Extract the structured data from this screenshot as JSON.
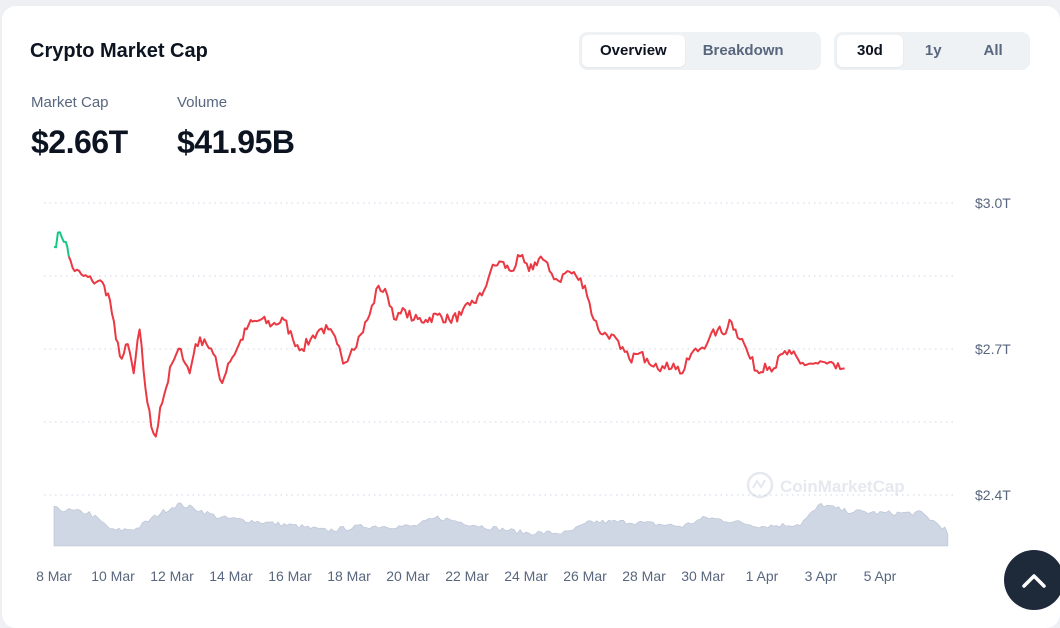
{
  "header": {
    "title": "Crypto Market Cap",
    "view_tabs": [
      {
        "label": "Overview",
        "active": true
      },
      {
        "label": "Breakdown",
        "active": false
      }
    ],
    "range_tabs": [
      {
        "label": "30d",
        "active": true
      },
      {
        "label": "1y",
        "active": false
      },
      {
        "label": "All",
        "active": false
      }
    ]
  },
  "stats": {
    "market_cap_label": "Market Cap",
    "market_cap_value": "$2.66T",
    "volume_label": "Volume",
    "volume_value": "$41.95B"
  },
  "watermark": "CoinMarketCap",
  "colors": {
    "line_down": "#ea3943",
    "line_up": "#16c784",
    "volume_fill": "#cfd6e4",
    "grid": "#cfd6e4",
    "text_muted": "#58667e"
  },
  "scroll_top_icon": "chevron-up-icon",
  "chart_data": {
    "type": "line",
    "y_ticks": [
      "$3.0T",
      "$2.7T",
      "$2.4T"
    ],
    "ylim": [
      2.4,
      3.0
    ],
    "x_ticks": [
      "8 Mar",
      "10 Mar",
      "12 Mar",
      "14 Mar",
      "16 Mar",
      "18 Mar",
      "20 Mar",
      "22 Mar",
      "24 Mar",
      "26 Mar",
      "28 Mar",
      "30 Mar",
      "1 Apr",
      "3 Apr",
      "5 Apr"
    ],
    "grid": true,
    "series": [
      {
        "values": [
          [
            0.0,
            2.91
          ],
          [
            0.2,
            2.94
          ],
          [
            0.4,
            2.92
          ],
          [
            0.5,
            2.89
          ],
          [
            0.7,
            2.86
          ],
          [
            1.0,
            2.85
          ],
          [
            1.3,
            2.84
          ],
          [
            1.5,
            2.84
          ],
          [
            1.7,
            2.83
          ],
          [
            1.9,
            2.8
          ],
          [
            2.1,
            2.72
          ],
          [
            2.3,
            2.68
          ],
          [
            2.5,
            2.71
          ],
          [
            2.7,
            2.65
          ],
          [
            2.9,
            2.74
          ],
          [
            3.1,
            2.62
          ],
          [
            3.3,
            2.54
          ],
          [
            3.45,
            2.52
          ],
          [
            3.6,
            2.58
          ],
          [
            3.8,
            2.62
          ],
          [
            4.0,
            2.67
          ],
          [
            4.3,
            2.7
          ],
          [
            4.6,
            2.65
          ],
          [
            4.8,
            2.71
          ],
          [
            5.1,
            2.72
          ],
          [
            5.4,
            2.69
          ],
          [
            5.7,
            2.63
          ],
          [
            5.9,
            2.67
          ],
          [
            6.2,
            2.7
          ],
          [
            6.6,
            2.75
          ],
          [
            7.0,
            2.76
          ],
          [
            7.4,
            2.75
          ],
          [
            7.8,
            2.76
          ],
          [
            8.1,
            2.72
          ],
          [
            8.4,
            2.7
          ],
          [
            8.7,
            2.72
          ],
          [
            9.0,
            2.74
          ],
          [
            9.3,
            2.74
          ],
          [
            9.6,
            2.71
          ],
          [
            9.8,
            2.67
          ],
          [
            10.1,
            2.7
          ],
          [
            10.4,
            2.73
          ],
          [
            10.7,
            2.77
          ],
          [
            11.0,
            2.83
          ],
          [
            11.3,
            2.81
          ],
          [
            11.6,
            2.76
          ],
          [
            11.9,
            2.78
          ],
          [
            12.2,
            2.76
          ],
          [
            12.6,
            2.76
          ],
          [
            13.0,
            2.77
          ],
          [
            13.4,
            2.76
          ],
          [
            13.8,
            2.77
          ],
          [
            14.1,
            2.79
          ],
          [
            14.5,
            2.81
          ],
          [
            14.8,
            2.86
          ],
          [
            15.1,
            2.88
          ],
          [
            15.5,
            2.86
          ],
          [
            15.8,
            2.89
          ],
          [
            16.1,
            2.86
          ],
          [
            16.5,
            2.89
          ],
          [
            16.8,
            2.86
          ],
          [
            17.1,
            2.84
          ],
          [
            17.4,
            2.86
          ],
          [
            17.7,
            2.85
          ],
          [
            18.0,
            2.83
          ],
          [
            18.3,
            2.76
          ],
          [
            18.6,
            2.73
          ],
          [
            18.9,
            2.73
          ],
          [
            19.2,
            2.7
          ],
          [
            19.5,
            2.68
          ],
          [
            19.8,
            2.69
          ],
          [
            20.1,
            2.68
          ],
          [
            20.4,
            2.67
          ],
          [
            20.7,
            2.66
          ],
          [
            21.0,
            2.67
          ],
          [
            21.3,
            2.65
          ],
          [
            21.6,
            2.69
          ],
          [
            21.9,
            2.7
          ],
          [
            22.2,
            2.72
          ],
          [
            22.5,
            2.74
          ],
          [
            22.7,
            2.73
          ],
          [
            22.9,
            2.76
          ],
          [
            23.1,
            2.74
          ],
          [
            23.4,
            2.71
          ],
          [
            23.6,
            2.68
          ],
          [
            23.9,
            2.65
          ],
          [
            24.1,
            2.67
          ],
          [
            24.4,
            2.66
          ],
          [
            24.7,
            2.69
          ],
          [
            25.0,
            2.69
          ],
          [
            25.3,
            2.67
          ],
          [
            25.6,
            2.67
          ],
          [
            25.9,
            2.67
          ],
          [
            26.2,
            2.67
          ],
          [
            26.5,
            2.66
          ],
          [
            26.8,
            2.66
          ]
        ]
      }
    ]
  }
}
